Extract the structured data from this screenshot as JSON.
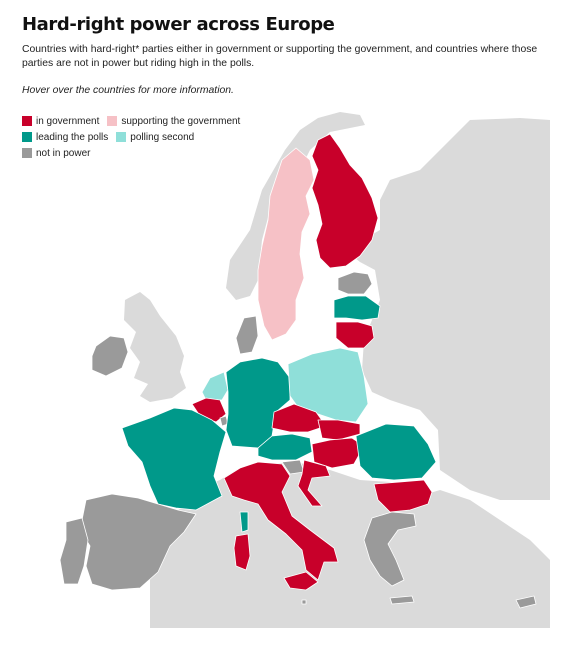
{
  "header": {
    "title": "Hard-right power across Europe",
    "subtitle": "Countries with hard-right* parties either in government or supporting the government, and countries where those parties are not in power but riding high in the polls.",
    "hint": "Hover over the countries for more information."
  },
  "colors": {
    "in_government": "#c8002a",
    "supporting_government": "#f6c1c6",
    "leading_polls": "#00998a",
    "polling_second": "#8fdfd9",
    "not_in_power": "#9a9a9a",
    "non_eu": "#dadada",
    "sea": "#ffffff"
  },
  "legend": {
    "items": [
      {
        "key": "in_government",
        "label": "in government",
        "color": "#c8002a"
      },
      {
        "key": "supporting_government",
        "label": "supporting the government",
        "color": "#f6c1c6"
      },
      {
        "key": "leading_polls",
        "label": "leading the polls",
        "color": "#00998a"
      },
      {
        "key": "polling_second",
        "label": "polling second",
        "color": "#8fdfd9"
      },
      {
        "key": "not_in_power",
        "label": "not in power",
        "color": "#9a9a9a"
      }
    ]
  },
  "countries": [
    {
      "name": "Finland",
      "status": "in_government"
    },
    {
      "name": "Sweden",
      "status": "supporting_government"
    },
    {
      "name": "Estonia",
      "status": "not_in_power"
    },
    {
      "name": "Latvia",
      "status": "leading_polls"
    },
    {
      "name": "Lithuania",
      "status": "in_government"
    },
    {
      "name": "Denmark",
      "status": "not_in_power"
    },
    {
      "name": "Ireland",
      "status": "not_in_power"
    },
    {
      "name": "Netherlands",
      "status": "polling_second"
    },
    {
      "name": "Belgium",
      "status": "in_government"
    },
    {
      "name": "Luxembourg",
      "status": "not_in_power"
    },
    {
      "name": "Germany",
      "status": "leading_polls"
    },
    {
      "name": "Poland",
      "status": "polling_second"
    },
    {
      "name": "France",
      "status": "leading_polls"
    },
    {
      "name": "Czechia",
      "status": "in_government"
    },
    {
      "name": "Slovakia",
      "status": "in_government"
    },
    {
      "name": "Austria",
      "status": "leading_polls"
    },
    {
      "name": "Hungary",
      "status": "in_government"
    },
    {
      "name": "Slovenia",
      "status": "not_in_power"
    },
    {
      "name": "Croatia",
      "status": "in_government"
    },
    {
      "name": "Romania",
      "status": "leading_polls"
    },
    {
      "name": "Bulgaria",
      "status": "in_government"
    },
    {
      "name": "Italy",
      "status": "in_government"
    },
    {
      "name": "Corsica",
      "status": "leading_polls"
    },
    {
      "name": "Spain",
      "status": "not_in_power"
    },
    {
      "name": "Portugal",
      "status": "not_in_power"
    },
    {
      "name": "Greece",
      "status": "not_in_power"
    },
    {
      "name": "Cyprus",
      "status": "not_in_power"
    },
    {
      "name": "Malta",
      "status": "not_in_power"
    }
  ]
}
